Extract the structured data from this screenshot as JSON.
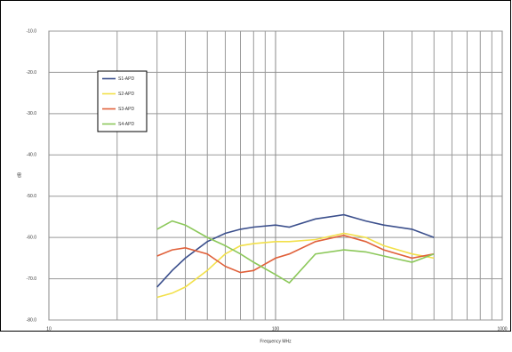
{
  "chart_data": {
    "type": "line",
    "x_label": "Frequency MHz",
    "y_label": "dB",
    "x": [
      30,
      35,
      40,
      50,
      60,
      70,
      80,
      100,
      115,
      150,
      200,
      250,
      300,
      400,
      500
    ],
    "series": [
      {
        "name": "S1-APD",
        "color": "#3b4f8c",
        "values": [
          -72,
          -68,
          -65,
          -61,
          -59,
          -58,
          -57.5,
          -57,
          -57.5,
          -55.5,
          -54.5,
          -56,
          -57,
          -58,
          -60
        ]
      },
      {
        "name": "S2-APD",
        "color": "#f2e04a",
        "values": [
          -74.5,
          -73.5,
          -72,
          -68,
          -64,
          -62,
          -61.5,
          -61,
          -61,
          -60.5,
          -59,
          -60,
          -62,
          -64,
          -65
        ]
      },
      {
        "name": "S3-APD",
        "color": "#e0603a",
        "values": [
          -64.5,
          -63,
          -62.5,
          -64,
          -67,
          -68.5,
          -68,
          -65,
          -64,
          -61,
          -59.5,
          -61,
          -63,
          -65,
          -64
        ]
      },
      {
        "name": "S4-APD",
        "color": "#8cc85a",
        "values": [
          -58,
          -56,
          -57,
          -60,
          -62,
          -64,
          -66,
          -69,
          -71,
          -64,
          -63,
          -63.5,
          -64.5,
          -66,
          -64
        ]
      }
    ],
    "xlim": [
      10,
      1000
    ],
    "xticks": [
      10,
      100,
      1000
    ],
    "xlog": true,
    "ylim": [
      -80,
      -10
    ],
    "yticks": [
      {
        "value": -80,
        "label": "-80.0"
      },
      {
        "value": -70,
        "label": "-70.0"
      },
      {
        "value": -60,
        "label": "-60.0"
      },
      {
        "value": -50,
        "label": "-50.0"
      },
      {
        "value": -40,
        "label": "-40.0"
      },
      {
        "value": -30,
        "label": "-30.0"
      },
      {
        "value": -20,
        "label": "-20.0"
      },
      {
        "value": -10,
        "label": "-10.0"
      }
    ],
    "grid": true,
    "legend": "upper left"
  }
}
